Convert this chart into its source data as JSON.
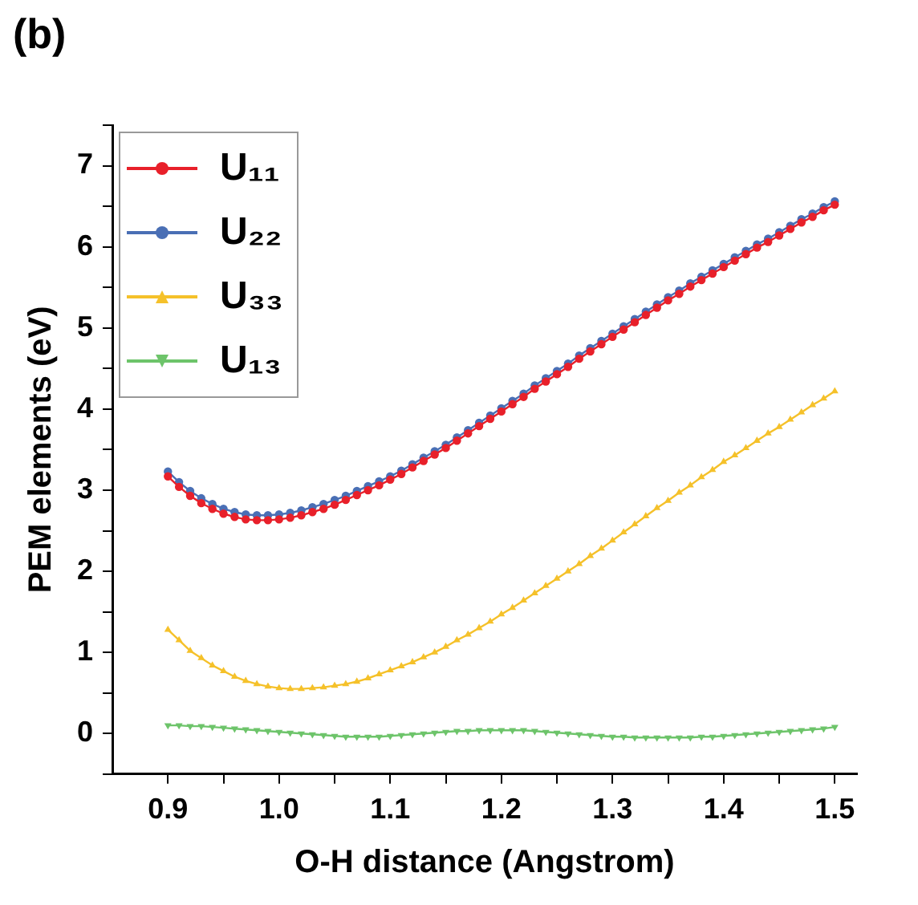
{
  "chart_data": {
    "type": "line",
    "title": "(b)",
    "xlabel": "O-H distance (Angstrom)",
    "ylabel": "PEM elements (eV)",
    "x": [
      0.9,
      0.91,
      0.92,
      0.93,
      0.94,
      0.95,
      0.96,
      0.97,
      0.98,
      0.99,
      1.0,
      1.01,
      1.02,
      1.03,
      1.04,
      1.05,
      1.06,
      1.07,
      1.08,
      1.09,
      1.1,
      1.11,
      1.12,
      1.13,
      1.14,
      1.15,
      1.16,
      1.17,
      1.18,
      1.19,
      1.2,
      1.21,
      1.22,
      1.23,
      1.24,
      1.25,
      1.26,
      1.27,
      1.28,
      1.29,
      1.3,
      1.31,
      1.32,
      1.33,
      1.34,
      1.35,
      1.36,
      1.37,
      1.38,
      1.39,
      1.4,
      1.41,
      1.42,
      1.43,
      1.44,
      1.45,
      1.46,
      1.47,
      1.48,
      1.49,
      1.5
    ],
    "series": [
      {
        "name": "U₁₁",
        "color": "#e8202a",
        "marker": "circle",
        "values": [
          3.17,
          3.04,
          2.93,
          2.84,
          2.77,
          2.71,
          2.67,
          2.64,
          2.63,
          2.63,
          2.64,
          2.66,
          2.69,
          2.73,
          2.77,
          2.82,
          2.88,
          2.94,
          3.0,
          3.06,
          3.13,
          3.2,
          3.28,
          3.36,
          3.44,
          3.52,
          3.61,
          3.7,
          3.79,
          3.88,
          3.97,
          4.06,
          4.15,
          4.25,
          4.34,
          4.43,
          4.52,
          4.62,
          4.71,
          4.8,
          4.89,
          4.98,
          5.07,
          5.16,
          5.25,
          5.34,
          5.42,
          5.51,
          5.59,
          5.67,
          5.75,
          5.83,
          5.91,
          5.99,
          6.06,
          6.14,
          6.22,
          6.3,
          6.37,
          6.45,
          6.52
        ]
      },
      {
        "name": "U₂₂",
        "color": "#4a6fb5",
        "marker": "circle",
        "values": [
          3.23,
          3.1,
          2.99,
          2.9,
          2.83,
          2.77,
          2.73,
          2.7,
          2.69,
          2.69,
          2.7,
          2.72,
          2.75,
          2.79,
          2.83,
          2.88,
          2.93,
          2.99,
          3.05,
          3.11,
          3.17,
          3.24,
          3.32,
          3.4,
          3.48,
          3.56,
          3.65,
          3.74,
          3.83,
          3.92,
          4.01,
          4.1,
          4.19,
          4.29,
          4.38,
          4.47,
          4.56,
          4.66,
          4.75,
          4.84,
          4.93,
          5.02,
          5.11,
          5.2,
          5.29,
          5.38,
          5.46,
          5.55,
          5.63,
          5.71,
          5.79,
          5.87,
          5.95,
          6.03,
          6.1,
          6.18,
          6.26,
          6.34,
          6.41,
          6.49,
          6.56
        ]
      },
      {
        "name": "U₃₃",
        "color": "#f5c12a",
        "marker": "triangle",
        "values": [
          1.28,
          1.15,
          1.02,
          0.93,
          0.84,
          0.77,
          0.7,
          0.65,
          0.61,
          0.58,
          0.56,
          0.55,
          0.55,
          0.56,
          0.57,
          0.59,
          0.61,
          0.64,
          0.68,
          0.73,
          0.78,
          0.83,
          0.88,
          0.94,
          1.0,
          1.07,
          1.15,
          1.22,
          1.3,
          1.38,
          1.47,
          1.55,
          1.64,
          1.73,
          1.82,
          1.91,
          2.0,
          2.09,
          2.19,
          2.28,
          2.38,
          2.48,
          2.58,
          2.68,
          2.78,
          2.87,
          2.97,
          3.06,
          3.16,
          3.25,
          3.35,
          3.43,
          3.52,
          3.61,
          3.7,
          3.78,
          3.87,
          3.96,
          4.05,
          4.13,
          4.22
        ]
      },
      {
        "name": "U₁₃",
        "color": "#6dc46a",
        "marker": "triangle_down",
        "values": [
          0.1,
          0.1,
          0.09,
          0.09,
          0.08,
          0.07,
          0.06,
          0.05,
          0.04,
          0.03,
          0.02,
          0.01,
          0.0,
          -0.01,
          -0.02,
          -0.03,
          -0.04,
          -0.04,
          -0.04,
          -0.04,
          -0.03,
          -0.02,
          -0.01,
          0.0,
          0.01,
          0.02,
          0.03,
          0.03,
          0.04,
          0.04,
          0.04,
          0.04,
          0.04,
          0.03,
          0.02,
          0.01,
          0.0,
          -0.01,
          -0.02,
          -0.03,
          -0.04,
          -0.04,
          -0.05,
          -0.05,
          -0.05,
          -0.05,
          -0.05,
          -0.05,
          -0.04,
          -0.04,
          -0.03,
          -0.02,
          -0.01,
          0.0,
          0.01,
          0.02,
          0.03,
          0.04,
          0.05,
          0.06,
          0.08
        ]
      }
    ],
    "xlim": [
      0.85,
      1.52
    ],
    "xticks": [
      0.9,
      {
        "value": 0.95,
        "label": null
      },
      {
        "value": 1.0,
        "label": "1.0"
      },
      {
        "value": 1.05,
        "label": null
      },
      1.1,
      {
        "value": 1.15,
        "label": null
      },
      1.2,
      {
        "value": 1.25,
        "label": null
      },
      1.3,
      {
        "value": 1.35,
        "label": null
      },
      1.4,
      {
        "value": 1.45,
        "label": null
      },
      1.5
    ],
    "ylim": [
      -0.5,
      7.5
    ],
    "yticks": [
      {
        "value": -0.5,
        "label": null
      },
      0,
      {
        "value": 0.5,
        "label": null
      },
      1,
      {
        "value": 1.5,
        "label": null
      },
      2,
      {
        "value": 2.5,
        "label": null
      },
      3,
      {
        "value": 3.5,
        "label": null
      },
      4,
      {
        "value": 4.5,
        "label": null
      },
      5,
      {
        "value": 5.5,
        "label": null
      },
      6,
      {
        "value": 6.5,
        "label": null
      },
      7,
      {
        "value": 7.5,
        "label": null
      }
    ],
    "grid": false,
    "legend": "top left",
    "line_style": "solid"
  }
}
